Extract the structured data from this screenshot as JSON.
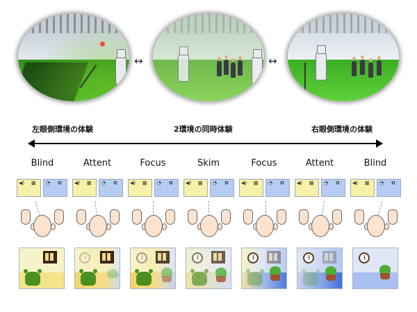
{
  "headings": {
    "left_view": "左眼側環境の体験",
    "center_view": "2環境の同時体験",
    "right_view": "右眼側環境の体験"
  },
  "connectors": [
    "↔",
    "↔"
  ],
  "modes": [
    {
      "label": "Blind"
    },
    {
      "label": "Attent"
    },
    {
      "label": "Focus"
    },
    {
      "label": "Skim"
    },
    {
      "label": "Focus"
    },
    {
      "label": "Attent"
    },
    {
      "label": "Blind"
    }
  ],
  "colors": {
    "left_env": "#f6f0a8",
    "right_env": "#b7ccf2",
    "bear": "#4a8f1f",
    "plant": "#4caf35",
    "pot": "#a0522d",
    "grass": "#3fa824"
  },
  "icons": [
    "speaker-icon",
    "window-icon",
    "clock-icon",
    "plant-icon",
    "bear-icon",
    "hand-icon",
    "head-icon"
  ]
}
